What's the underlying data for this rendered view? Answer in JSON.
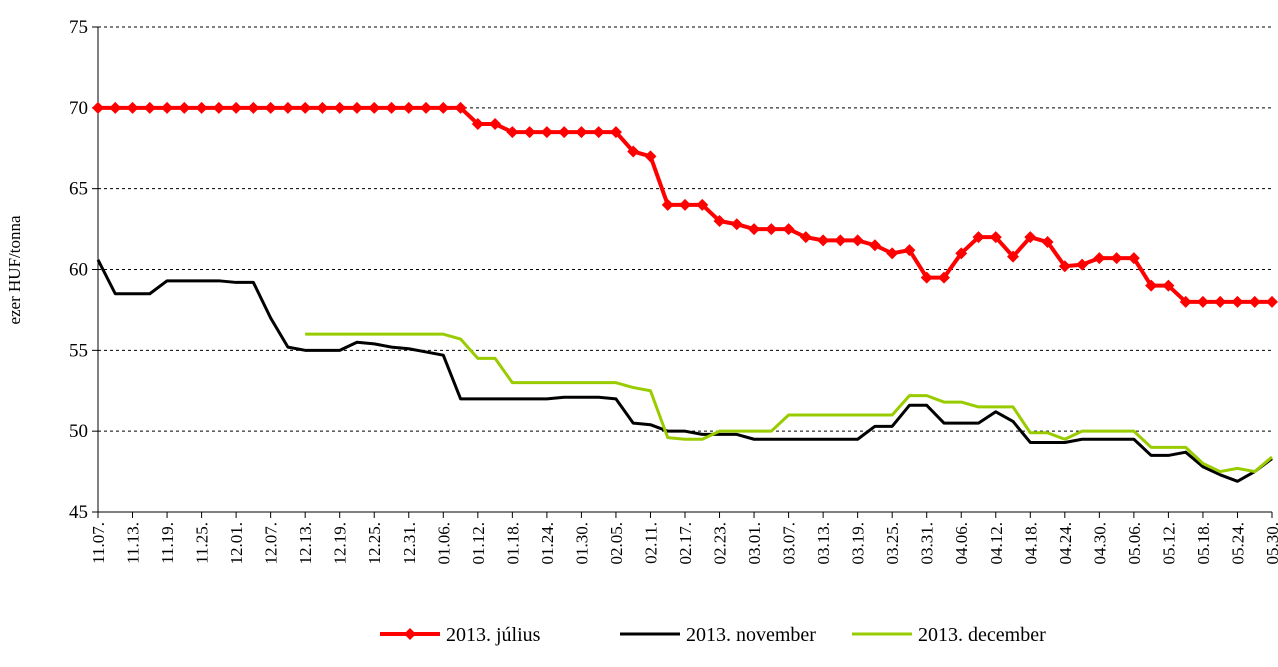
{
  "chart_data": {
    "type": "line",
    "y_label": "ezer HUF/tonna",
    "categories": [
      "11.07.",
      null,
      "11.13.",
      null,
      "11.19.",
      null,
      "11.25.",
      null,
      "12.01.",
      null,
      "12.07.",
      null,
      "12.13.",
      null,
      "12.19.",
      null,
      "12.25.",
      null,
      "12.31.",
      null,
      "01.06.",
      null,
      "01.12.",
      null,
      "01.18.",
      null,
      "01.24.",
      null,
      "01.30.",
      null,
      "02.05.",
      null,
      "02.11.",
      null,
      "02.17.",
      null,
      "02.23.",
      null,
      "03.01.",
      null,
      "03.07.",
      null,
      "03.13.",
      null,
      "03.19.",
      null,
      "03.25.",
      null,
      "03.31.",
      null,
      "04.06.",
      null,
      "04.12.",
      null,
      "04.18.",
      null,
      "04.24.",
      null,
      "04.30.",
      null,
      "05.06.",
      null,
      "05.12.",
      null,
      "05.18.",
      null,
      "05.24.",
      null,
      "05.30."
    ],
    "series": [
      {
        "name": "2013. július",
        "color": "#ff0000",
        "marker": "diamond",
        "values": [
          70,
          70,
          70,
          70,
          70,
          70,
          70,
          70,
          70,
          70,
          70,
          70,
          70,
          70,
          70,
          70,
          70,
          70,
          70,
          70,
          70,
          70,
          69,
          69,
          68.5,
          68.5,
          68.5,
          68.5,
          68.5,
          68.5,
          68.5,
          67.3,
          67,
          64,
          64,
          64,
          63,
          62.8,
          62.5,
          62.5,
          62.5,
          62,
          61.8,
          61.8,
          61.8,
          61.5,
          61,
          61.2,
          59.5,
          59.5,
          61,
          62,
          62,
          60.8,
          62,
          61.7,
          60.2,
          60.3,
          60.7,
          60.7,
          60.7,
          59,
          59,
          58,
          58,
          58,
          58,
          58,
          58
        ]
      },
      {
        "name": "2013. november",
        "color": "#000000",
        "values": [
          60.6,
          58.5,
          58.5,
          58.5,
          59.3,
          59.3,
          59.3,
          59.3,
          59.2,
          59.2,
          57,
          55.2,
          55,
          55,
          55,
          55.5,
          55.4,
          55.2,
          55.1,
          54.9,
          54.7,
          52,
          52,
          52,
          52,
          52,
          52,
          52.1,
          52.1,
          52.1,
          52,
          50.5,
          50.4,
          50,
          50,
          49.8,
          49.8,
          49.8,
          49.5,
          49.5,
          49.5,
          49.5,
          49.5,
          49.5,
          49.5,
          50.3,
          50.3,
          51.6,
          51.6,
          50.5,
          50.5,
          50.5,
          51.2,
          50.6,
          49.3,
          49.3,
          49.3,
          49.5,
          49.5,
          49.5,
          49.5,
          48.5,
          48.5,
          48.7,
          47.8,
          47.3,
          46.9,
          47.5,
          48.3
        ]
      },
      {
        "name": "2013. december",
        "color": "#99cc00",
        "values": [
          null,
          null,
          null,
          null,
          null,
          null,
          null,
          null,
          null,
          null,
          null,
          null,
          56,
          56,
          56,
          56,
          56,
          56,
          56,
          56,
          56,
          55.7,
          54.5,
          54.5,
          53,
          53,
          53,
          53,
          53,
          53,
          53,
          52.7,
          52.5,
          49.6,
          49.5,
          49.5,
          50,
          50,
          50,
          50,
          51,
          51,
          51,
          51,
          51,
          51,
          51,
          52.2,
          52.2,
          51.8,
          51.8,
          51.5,
          51.5,
          51.5,
          49.9,
          49.9,
          49.5,
          50,
          50,
          50,
          50,
          49,
          49,
          49,
          48,
          47.5,
          47.7,
          47.5,
          48.4
        ]
      }
    ],
    "ylim": [
      45,
      75
    ],
    "yticks": [
      45,
      50,
      55,
      60,
      65,
      70,
      75
    ],
    "grid": true
  }
}
